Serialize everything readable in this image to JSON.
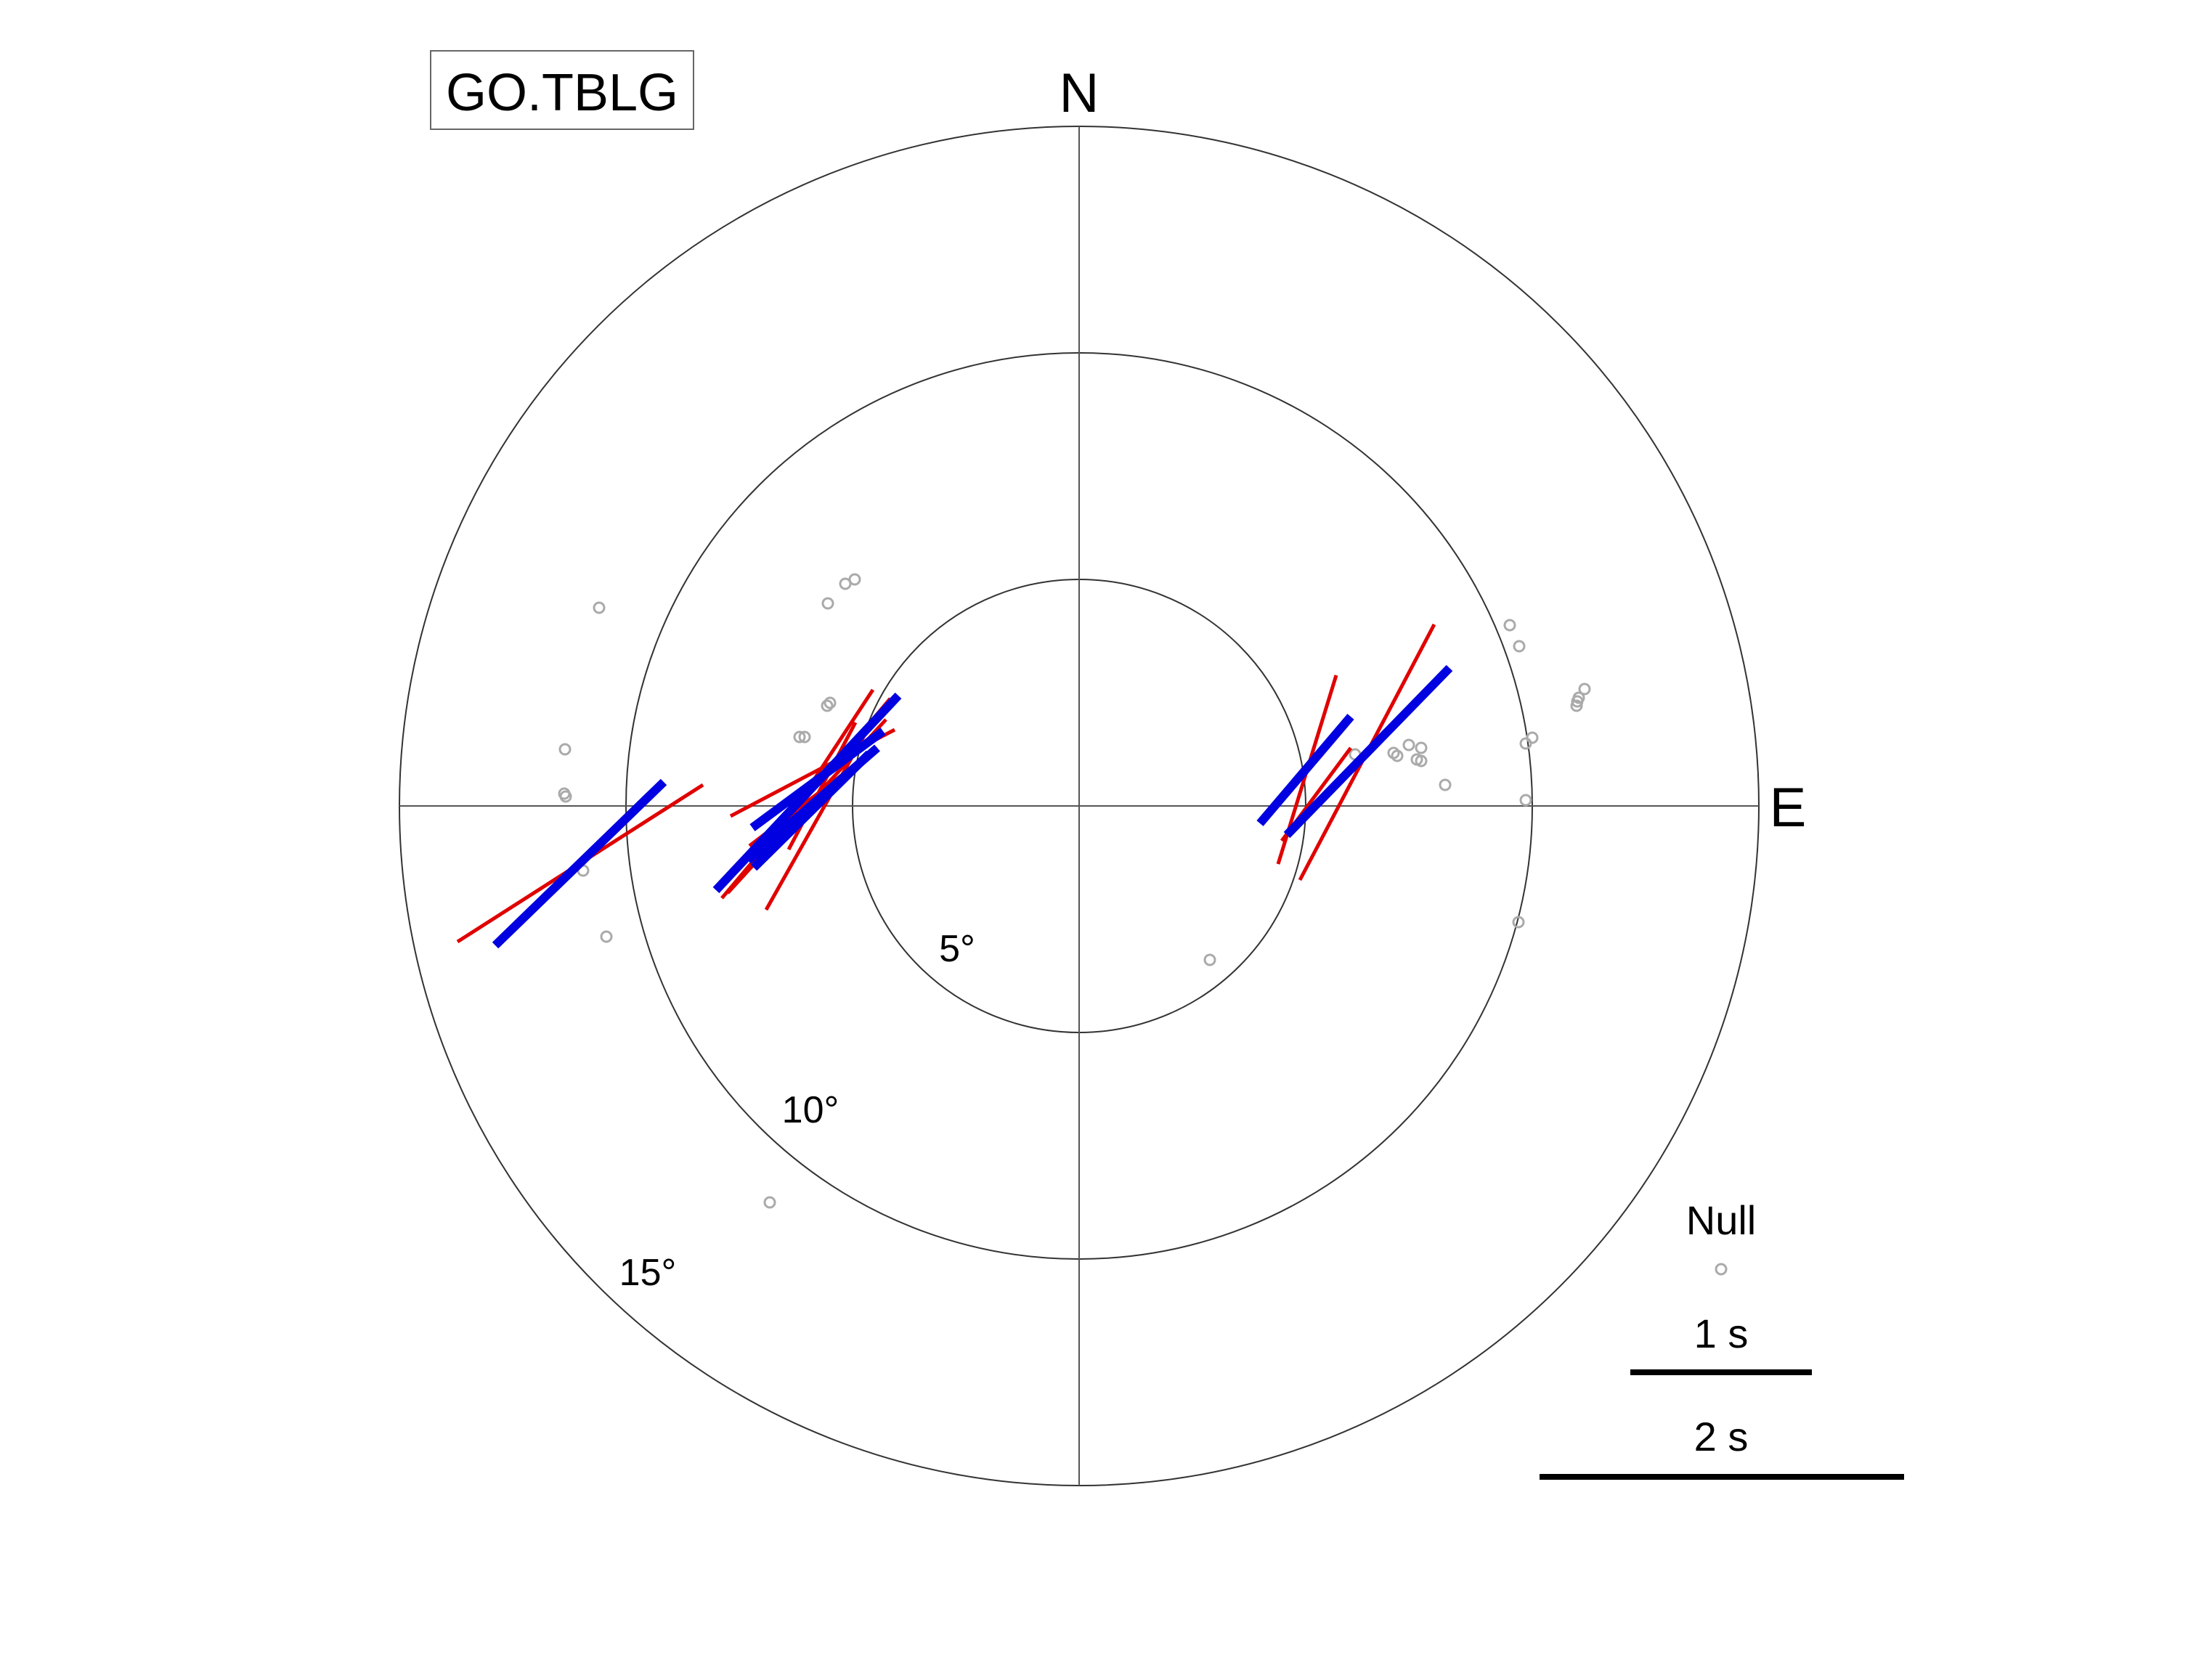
{
  "plot": {
    "station": "GO.TBLG",
    "compass": {
      "north": "N",
      "east": "E"
    },
    "ring_labels": [
      "5°",
      "10°",
      "15°"
    ],
    "legend": {
      "null_label": "Null",
      "scale_1": "1 s",
      "scale_2": "2 s"
    },
    "colors": {
      "ring": "#333333",
      "crosshair": "#555555",
      "mean_split": "#0000e0",
      "single_split": "#e00000",
      "null": "#aaaaaa",
      "scale_bar": "#000000"
    }
  }
}
